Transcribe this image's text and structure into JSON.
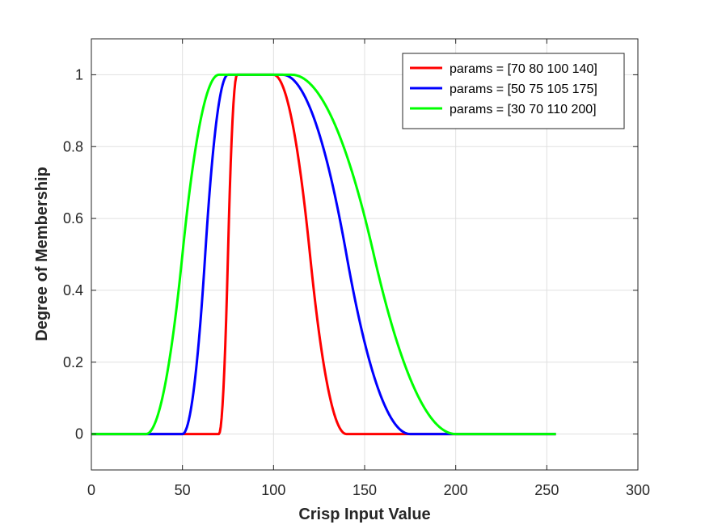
{
  "chart_data": {
    "type": "line",
    "xlabel": "Crisp Input Value",
    "ylabel": "Degree of Membership",
    "xlim": [
      0,
      300
    ],
    "ylim": [
      -0.1,
      1.1
    ],
    "xticks": [
      0,
      50,
      100,
      150,
      200,
      250,
      300
    ],
    "yticks": [
      0,
      0.2,
      0.4,
      0.6,
      0.8,
      1
    ],
    "ytick_labels": [
      "0",
      "0.2",
      "0.4",
      "0.6",
      "0.8",
      "1"
    ],
    "grid": true,
    "legend_position": "top-right",
    "x_domain": [
      0,
      255
    ],
    "function": "pi-shaped membership (smf/zmf)",
    "series": [
      {
        "name": "params = [70 80 100 140]",
        "color": "#ff0000",
        "params": [
          70,
          80,
          100,
          140
        ]
      },
      {
        "name": "params = [50 75 105 175]",
        "color": "#0000ff",
        "params": [
          50,
          75,
          105,
          175
        ]
      },
      {
        "name": "params = [30 70 110 200]",
        "color": "#00ff00",
        "params": [
          30,
          70,
          110,
          200
        ]
      }
    ]
  }
}
